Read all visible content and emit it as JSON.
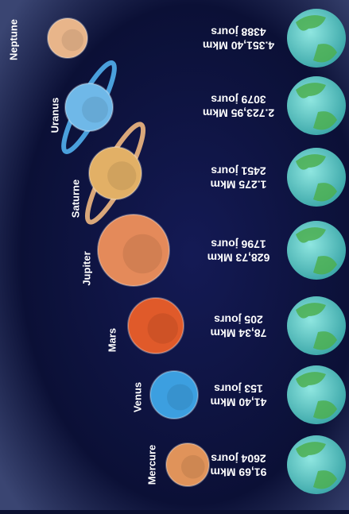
{
  "planets": [
    {
      "name": "Neptune",
      "distance": "4.351,40 Mkm",
      "days": "4388 jours"
    },
    {
      "name": "Uranus",
      "distance": "2.723,95 Mkm",
      "days": "3079 jours"
    },
    {
      "name": "Saturne",
      "distance": "1.275 Mkm",
      "days": "2451 jours"
    },
    {
      "name": "Jupiter",
      "distance": "628,73 Mkm",
      "days": "1796 jours"
    },
    {
      "name": "Mars",
      "distance": "78,34 Mkm",
      "days": "205 jours"
    },
    {
      "name": "Venus",
      "distance": "41,40 Mkm",
      "days": "153 jours"
    },
    {
      "name": "Mercure",
      "distance": "91,69 Mkm",
      "days": "2604 jours"
    }
  ]
}
